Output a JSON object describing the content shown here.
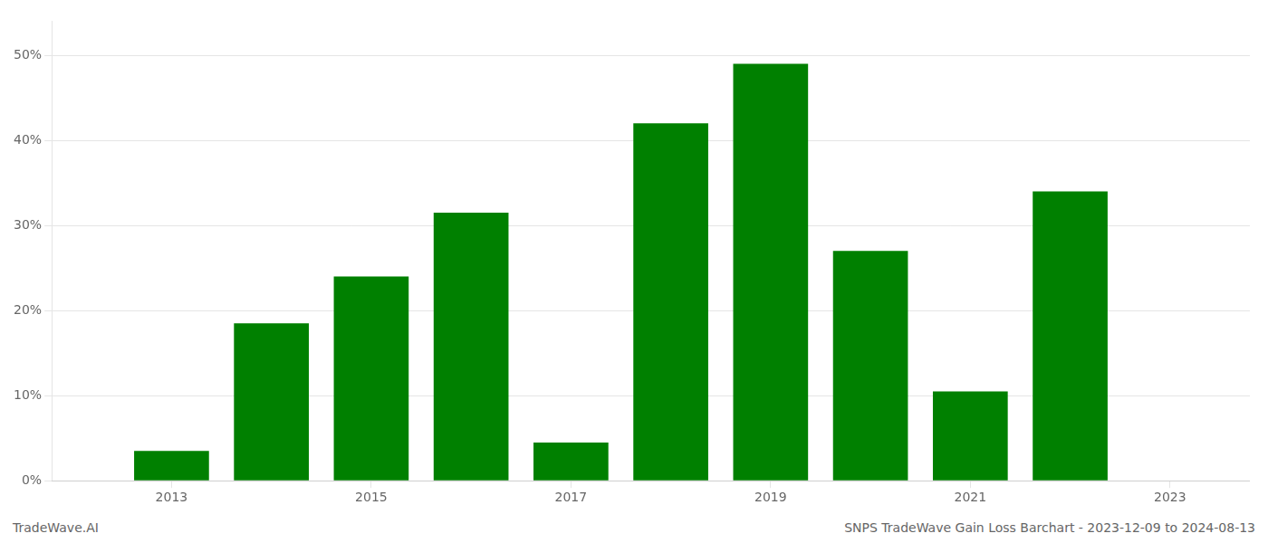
{
  "chart_data": {
    "type": "bar",
    "x": [
      2013,
      2014,
      2015,
      2016,
      2017,
      2018,
      2019,
      2020,
      2021,
      2022
    ],
    "values": [
      3.5,
      18.5,
      24.0,
      31.5,
      4.5,
      42.0,
      49.0,
      27.0,
      10.5,
      34.0
    ],
    "color": "#008000",
    "xlim": [
      2011.8,
      2023.8
    ],
    "xticks": [
      2013,
      2015,
      2017,
      2019,
      2021,
      2023
    ],
    "ylim": [
      0,
      54
    ],
    "yticks": [
      {
        "value": 0,
        "label": "0%"
      },
      {
        "value": 10,
        "label": "10%"
      },
      {
        "value": 20,
        "label": "20%"
      },
      {
        "value": 30,
        "label": "30%"
      },
      {
        "value": 40,
        "label": "40%"
      },
      {
        "value": 50,
        "label": "50%"
      }
    ],
    "grid": true,
    "annotations": [
      "TradeWave.AI",
      "SNPS TradeWave Gain Loss Barchart - 2023-12-09 to 2024-08-13"
    ]
  }
}
